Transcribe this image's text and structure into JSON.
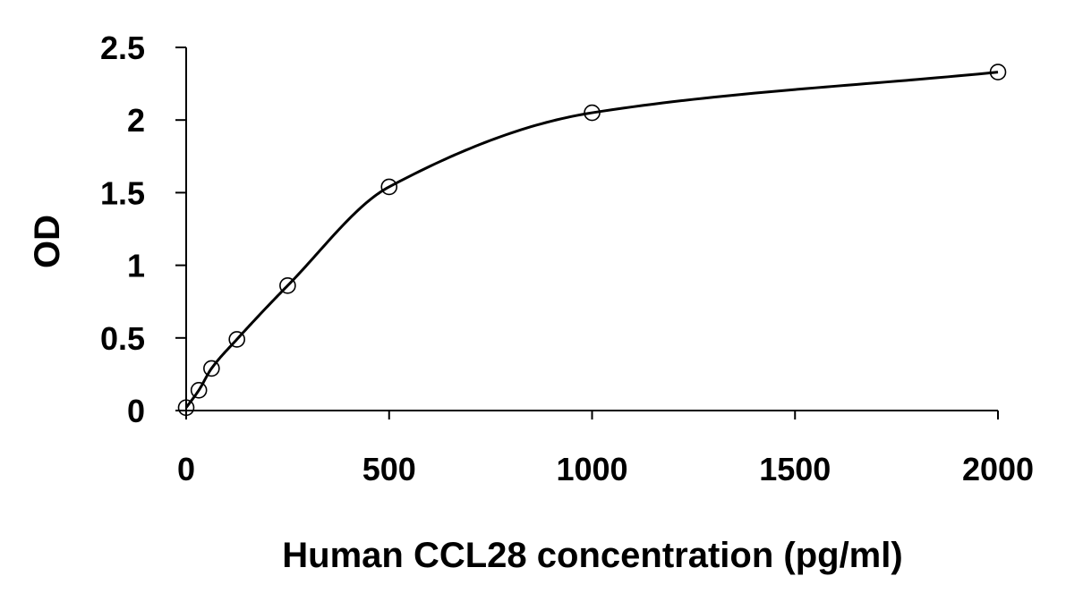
{
  "chart_data": {
    "type": "scatter",
    "title": "",
    "xlabel": "Human CCL28 concentration (pg/ml)",
    "ylabel": "OD",
    "xlim": [
      0,
      2000
    ],
    "ylim": [
      0,
      2.5
    ],
    "xticks": [
      0,
      500,
      1000,
      1500,
      2000
    ],
    "xtick_labels": [
      "0",
      "500",
      "1000",
      "1500",
      "2000"
    ],
    "yticks": [
      0,
      0.5,
      1,
      1.5,
      2,
      2.5
    ],
    "ytick_labels": [
      "0",
      "0.5",
      "1",
      "1.5",
      "2",
      "2.5"
    ],
    "grid": false,
    "legend": "none",
    "marker": "open-circle",
    "fit": "smooth-curve",
    "colors": {
      "line": "#000000",
      "marker": "#000000",
      "background": "#ffffff"
    },
    "series": [
      {
        "x": [
          0,
          31.25,
          62.5,
          125,
          250,
          500,
          1000,
          2000
        ],
        "y": [
          0.02,
          0.14,
          0.29,
          0.49,
          0.86,
          1.54,
          2.05,
          2.33
        ]
      }
    ]
  }
}
